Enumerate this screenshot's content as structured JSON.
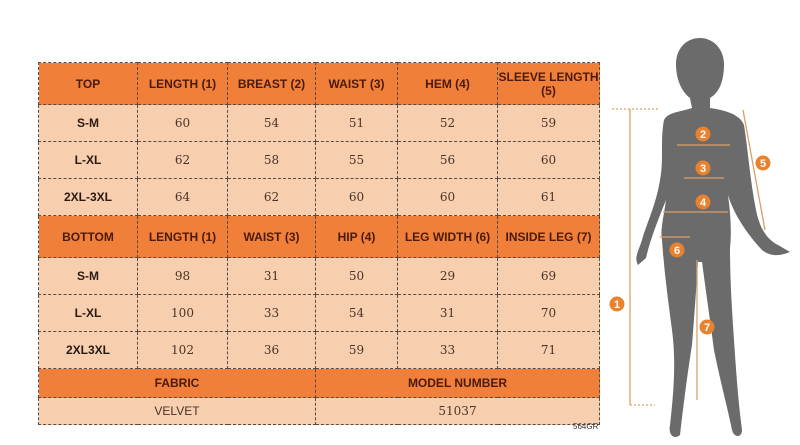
{
  "top": {
    "headers": [
      "TOP",
      "LENGTH (1)",
      "BREAST (2)",
      "WAIST (3)",
      "HEM (4)",
      "SLEEVE LENGTH (5)"
    ],
    "rows": [
      [
        "S-M",
        "60",
        "54",
        "51",
        "52",
        "59"
      ],
      [
        "L-XL",
        "62",
        "58",
        "55",
        "56",
        "60"
      ],
      [
        "2XL-3XL",
        "64",
        "62",
        "60",
        "60",
        "61"
      ]
    ]
  },
  "bottom": {
    "headers": [
      "BOTTOM",
      "LENGTH (1)",
      "WAIST (3)",
      "HIP (4)",
      "LEG WIDTH (6)",
      "INSIDE LEG (7)"
    ],
    "rows": [
      [
        "S-M",
        "98",
        "31",
        "50",
        "29",
        "69"
      ],
      [
        "L-XL",
        "100",
        "33",
        "54",
        "31",
        "70"
      ],
      [
        "2XL3XL",
        "102",
        "36",
        "59",
        "33",
        "71"
      ]
    ]
  },
  "info": {
    "fabric_label": "FABRIC",
    "fabric": "VELVET",
    "model_label": "MODEL NUMBER",
    "model": "51037"
  },
  "code": "564GR",
  "figure": {
    "markers": [
      "1",
      "2",
      "3",
      "4",
      "5",
      "6",
      "7"
    ]
  },
  "colors": {
    "header": "#f07f3a",
    "cell": "#f8cfae",
    "marker": "#e8822e",
    "silhouette": "#6b6b6b"
  }
}
